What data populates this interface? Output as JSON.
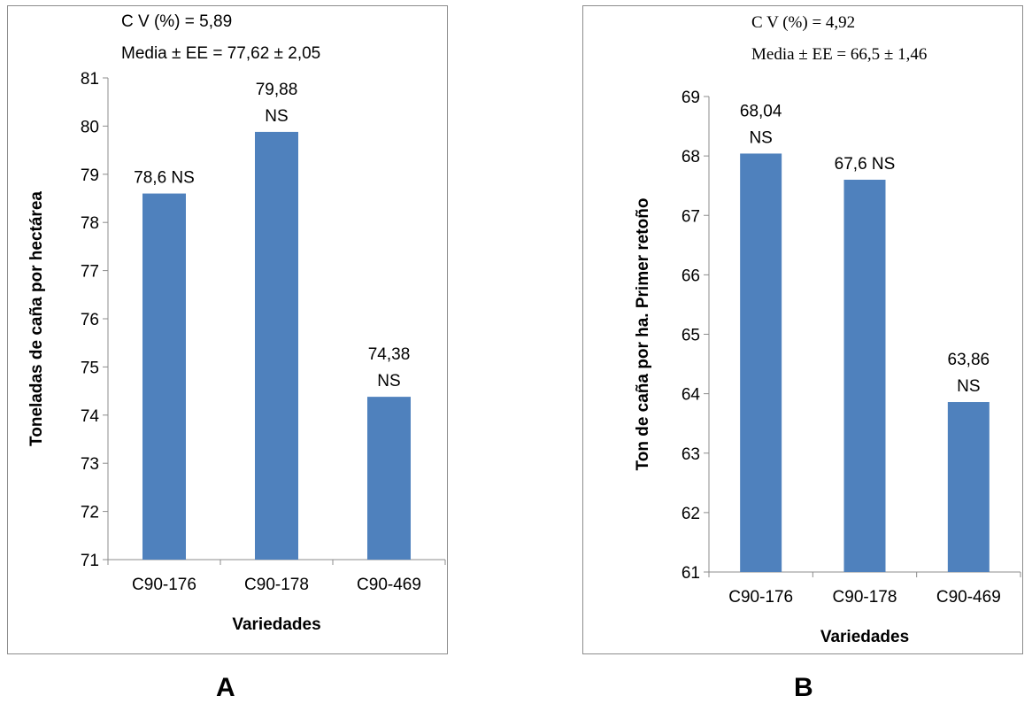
{
  "panels": [
    {
      "label": "A",
      "chart_data": {
        "type": "bar",
        "categories": [
          "C90-176",
          "C90-178",
          "C90-469"
        ],
        "values": [
          78.6,
          79.88,
          74.38
        ],
        "data_labels": [
          "78,6 NS",
          "79,88\nNS",
          "74,38\nNS"
        ],
        "xlabel": "Variedades",
        "ylabel": "Toneladas de caña por hectárea",
        "ylim": [
          71,
          81
        ],
        "yticks": [
          "71",
          "72",
          "73",
          "74",
          "75",
          "76",
          "77",
          "78",
          "79",
          "80",
          "81"
        ],
        "annotations": [
          "C V (%) = 5,89",
          "Media ± EE = 77,62 ± 2,05"
        ],
        "grid": false,
        "legend": "none",
        "bar_color": "#4f81bd"
      }
    },
    {
      "label": "B",
      "chart_data": {
        "type": "bar",
        "categories": [
          "C90-176",
          "C90-178",
          "C90-469"
        ],
        "values": [
          68.04,
          67.6,
          63.86
        ],
        "data_labels": [
          "68,04\nNS",
          "67,6 NS",
          "63,86\nNS"
        ],
        "xlabel": "Variedades",
        "ylabel": "Ton de caña por ha. Primer retoño",
        "ylim": [
          61,
          69
        ],
        "yticks": [
          "61",
          "62",
          "63",
          "64",
          "65",
          "66",
          "67",
          "68",
          "69"
        ],
        "annotations": [
          "C V (%) = 4,92",
          "Media ± EE = 66,5 ± 1,46"
        ],
        "grid": false,
        "legend": "none",
        "bar_color": "#4f81bd"
      }
    }
  ]
}
